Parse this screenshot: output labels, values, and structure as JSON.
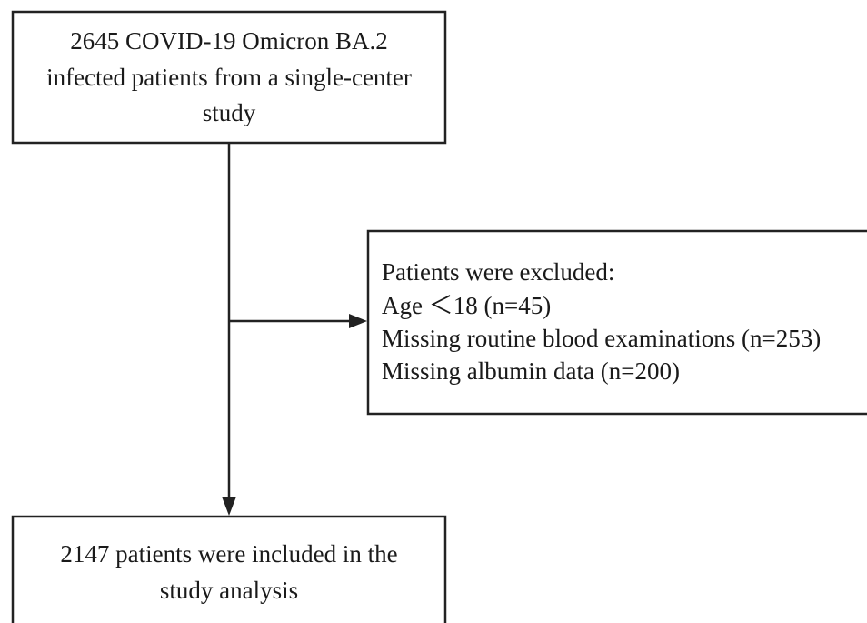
{
  "nodes": [
    {
      "lines": [
        "2645 COVID-19 Omicron BA.2",
        "infected patients from a single-center",
        "study"
      ]
    },
    {
      "lines": [
        "Patients were excluded:",
        "Age ＜18 (n=45)",
        "Missing routine blood examinations (n=253)",
        "Missing albumin data (n=200)"
      ]
    },
    {
      "lines": [
        "2147 patients were included in the",
        "study analysis"
      ]
    }
  ]
}
